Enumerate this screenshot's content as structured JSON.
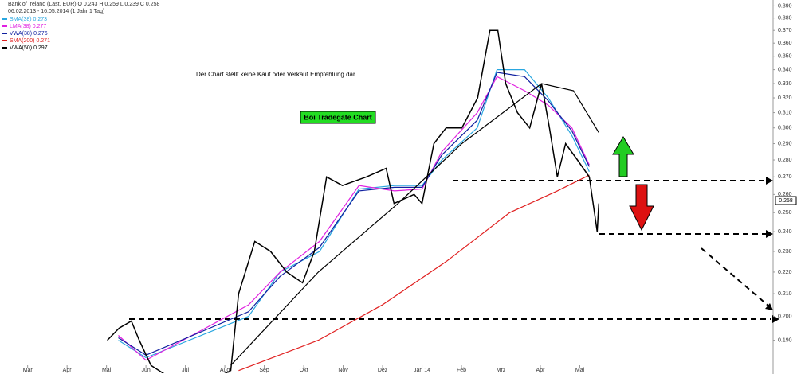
{
  "chart_data": {
    "type": "line",
    "header": [
      "Bank of Ireland (Last, EUR) O 0,243 H 0,259 L 0,239 C 0,258",
      "06.02.2013 - 16.05.2014 (1 Jahr 1 Tag)"
    ],
    "annotations": [
      "Der Chart stellt keine Kauf oder Verkauf Empfehlung dar.",
      "Boi Tradegate Chart"
    ],
    "last_label": "0.258",
    "log_scale": true,
    "grid": false,
    "xlim": [
      0.3,
      19.9
    ],
    "xticks": [
      {
        "value": 1,
        "label": "Mar"
      },
      {
        "value": 2,
        "label": "Apr"
      },
      {
        "value": 3,
        "label": "Mai"
      },
      {
        "value": 4,
        "label": "Jun"
      },
      {
        "value": 5,
        "label": "Jul"
      },
      {
        "value": 6,
        "label": "Aug"
      },
      {
        "value": 7,
        "label": "Sep"
      },
      {
        "value": 8,
        "label": "Okt"
      },
      {
        "value": 9,
        "label": "Nov"
      },
      {
        "value": 10,
        "label": "Dez"
      },
      {
        "value": 11,
        "label": "Jan 14"
      },
      {
        "value": 12,
        "label": "Feb"
      },
      {
        "value": 13,
        "label": "Mrz"
      },
      {
        "value": 14,
        "label": "Apr"
      },
      {
        "value": 15,
        "label": "Mai"
      }
    ],
    "ylim": [
      0.177,
      0.395
    ],
    "yticks": [
      {
        "value": 0.19,
        "label": "0.190"
      },
      {
        "value": 0.2,
        "label": "0.200"
      },
      {
        "value": 0.21,
        "label": "0.210"
      },
      {
        "value": 0.22,
        "label": "0.220"
      },
      {
        "value": 0.23,
        "label": "0.230"
      },
      {
        "value": 0.24,
        "label": "0.240"
      },
      {
        "value": 0.25,
        "label": "0.250"
      },
      {
        "value": 0.26,
        "label": "0.260"
      },
      {
        "value": 0.27,
        "label": "0.270"
      },
      {
        "value": 0.28,
        "label": "0.280"
      },
      {
        "value": 0.29,
        "label": "0.290"
      },
      {
        "value": 0.3,
        "label": "0.300"
      },
      {
        "value": 0.31,
        "label": "0.310"
      },
      {
        "value": 0.32,
        "label": "0.320"
      },
      {
        "value": 0.33,
        "label": "0.330"
      },
      {
        "value": 0.34,
        "label": "0.340"
      },
      {
        "value": 0.35,
        "label": "0.350"
      },
      {
        "value": 0.36,
        "label": "0.360"
      },
      {
        "value": 0.37,
        "label": "0.370"
      },
      {
        "value": 0.38,
        "label": "0.380"
      },
      {
        "value": 0.39,
        "label": "0.390"
      }
    ],
    "price": {
      "color": "#000000",
      "x": [
        3.02,
        3.32,
        3.63,
        3.83,
        4.13,
        4.54,
        5.14,
        5.75,
        6.15,
        6.35,
        6.76,
        7.16,
        7.57,
        7.97,
        8.27,
        8.58,
        8.98,
        9.59,
        10.09,
        10.29,
        10.8,
        11.0,
        11.3,
        11.61,
        12.01,
        12.41,
        12.72,
        12.92,
        13.12,
        13.42,
        13.73,
        14.03,
        14.23,
        14.43,
        14.64,
        14.94,
        15.24,
        15.44,
        15.48
      ],
      "values": [
        0.19,
        0.195,
        0.198,
        0.19,
        0.18,
        0.176,
        0.174,
        0.175,
        0.178,
        0.21,
        0.235,
        0.23,
        0.22,
        0.215,
        0.23,
        0.27,
        0.265,
        0.27,
        0.275,
        0.255,
        0.26,
        0.255,
        0.29,
        0.3,
        0.3,
        0.32,
        0.37,
        0.37,
        0.33,
        0.31,
        0.3,
        0.33,
        0.3,
        0.27,
        0.29,
        0.28,
        0.27,
        0.24,
        0.255
      ]
    },
    "series": [
      {
        "name": "SMA(38) 0.273",
        "color": "#2aa7e0",
        "x": [
          3.3,
          4.0,
          6.6,
          7.4,
          8.4,
          9.4,
          10.3,
          11.0,
          11.5,
          12.4,
          12.9,
          13.6,
          14.2,
          14.8,
          15.24
        ],
        "values": [
          0.19,
          0.183,
          0.2,
          0.22,
          0.23,
          0.263,
          0.265,
          0.265,
          0.28,
          0.3,
          0.34,
          0.34,
          0.32,
          0.295,
          0.273
        ]
      },
      {
        "name": "LMA(38) 0.277",
        "color": "#e020e0",
        "x": [
          3.3,
          4.0,
          6.6,
          7.4,
          8.4,
          9.4,
          10.3,
          11.0,
          11.5,
          12.4,
          12.9,
          13.6,
          14.2,
          14.8,
          15.24
        ],
        "values": [
          0.192,
          0.182,
          0.205,
          0.22,
          0.235,
          0.265,
          0.262,
          0.263,
          0.285,
          0.31,
          0.335,
          0.325,
          0.315,
          0.3,
          0.277
        ]
      },
      {
        "name": "VWA(38) 0.276",
        "color": "#1020a0",
        "x": [
          3.3,
          4.0,
          6.6,
          7.4,
          8.4,
          9.4,
          10.3,
          11.0,
          11.5,
          12.4,
          12.9,
          13.6,
          14.2,
          14.8,
          15.24
        ],
        "values": [
          0.191,
          0.184,
          0.202,
          0.218,
          0.232,
          0.262,
          0.264,
          0.264,
          0.283,
          0.305,
          0.338,
          0.335,
          0.318,
          0.298,
          0.276
        ]
      },
      {
        "name": "SMA(200) 0.271",
        "color": "#e02020",
        "x": [
          6.35,
          8.37,
          9.99,
          11.61,
          13.22,
          14.43,
          15.24
        ],
        "values": [
          0.178,
          0.19,
          0.205,
          0.225,
          0.25,
          0.262,
          0.271
        ]
      },
      {
        "name": "VWA(50) 0.297",
        "color": "#000000",
        "x": [
          6.15,
          8.37,
          10.39,
          12.01,
          14.03,
          14.84,
          15.48
        ],
        "values": [
          0.18,
          0.22,
          0.255,
          0.29,
          0.33,
          0.325,
          0.297
        ]
      }
    ]
  }
}
